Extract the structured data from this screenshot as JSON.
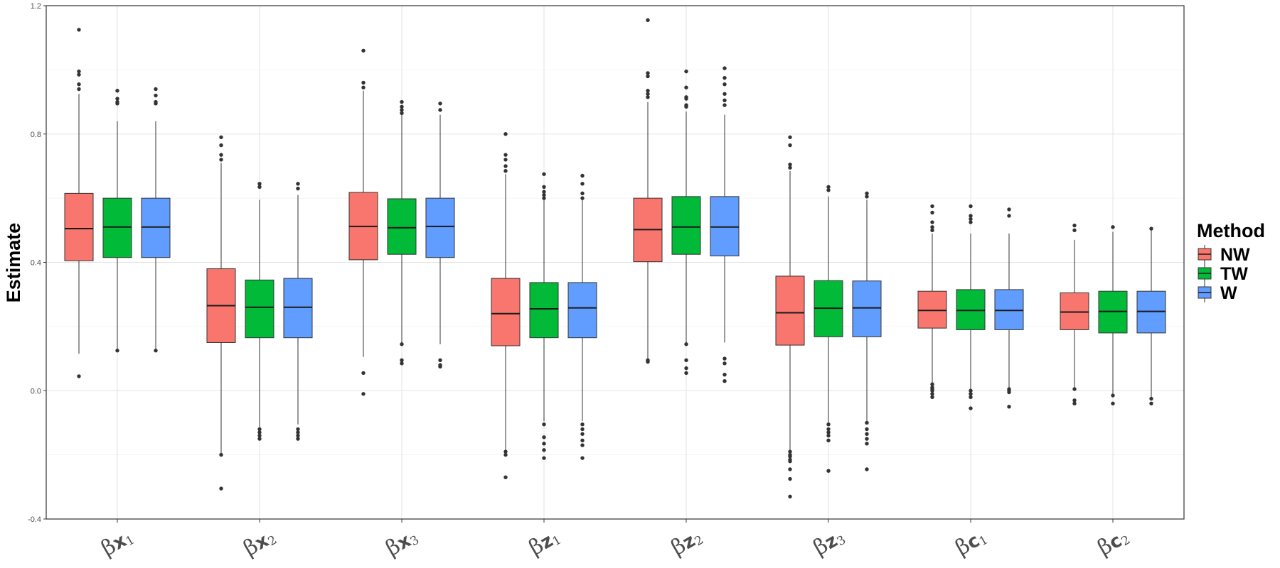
{
  "chart_data": {
    "type": "boxplot",
    "title": "",
    "xlabel": "",
    "ylabel": "Estimate",
    "ylim": [
      -0.4,
      1.2
    ],
    "yticks": [
      1.2,
      0.8,
      0.4,
      0.0,
      -0.4
    ],
    "ytick_labels": [
      "1.2",
      "0.8",
      "0.4",
      "0.0",
      "-0.4"
    ],
    "grid": true,
    "legend": {
      "title": "Method",
      "position": "right",
      "entries": [
        {
          "name": "NW",
          "color": "#F8766D"
        },
        {
          "name": "TW",
          "color": "#00BA38"
        },
        {
          "name": "W",
          "color": "#619CFF"
        }
      ]
    },
    "categories": [
      {
        "base": "β",
        "letter": "x",
        "sub": "1"
      },
      {
        "base": "β",
        "letter": "x",
        "sub": "2"
      },
      {
        "base": "β",
        "letter": "x",
        "sub": "3"
      },
      {
        "base": "β",
        "letter": "z",
        "sub": "1"
      },
      {
        "base": "β",
        "letter": "z",
        "sub": "2"
      },
      {
        "base": "β",
        "letter": "z",
        "sub": "3"
      },
      {
        "base": "β",
        "letter": "c",
        "sub": "1"
      },
      {
        "base": "β",
        "letter": "c",
        "sub": "2"
      }
    ],
    "series": [
      {
        "name": "NW",
        "color": "#F8766D",
        "boxes": [
          {
            "q1": 0.405,
            "median": 0.505,
            "q3": 0.615,
            "lower": 0.115,
            "upper": 0.925,
            "outliers": [
              1.125,
              0.995,
              0.985,
              0.955,
              0.94,
              0.045
            ]
          },
          {
            "q1": 0.15,
            "median": 0.265,
            "q3": 0.38,
            "lower": -0.195,
            "upper": 0.71,
            "outliers": [
              0.79,
              0.765,
              0.735,
              0.72,
              -0.2,
              -0.305
            ]
          },
          {
            "q1": 0.408,
            "median": 0.512,
            "q3": 0.618,
            "lower": 0.105,
            "upper": 0.935,
            "outliers": [
              1.06,
              0.96,
              0.945,
              0.055,
              -0.01
            ]
          },
          {
            "q1": 0.14,
            "median": 0.24,
            "q3": 0.35,
            "lower": -0.185,
            "upper": 0.675,
            "outliers": [
              0.8,
              0.735,
              0.72,
              0.7,
              0.685,
              -0.19,
              -0.2,
              -0.27
            ]
          },
          {
            "q1": 0.402,
            "median": 0.502,
            "q3": 0.6,
            "lower": 0.1,
            "upper": 0.9,
            "outliers": [
              1.155,
              0.99,
              0.98,
              0.935,
              0.925,
              0.915,
              0.095,
              0.09
            ]
          },
          {
            "q1": 0.142,
            "median": 0.243,
            "q3": 0.357,
            "lower": -0.185,
            "upper": 0.685,
            "outliers": [
              0.79,
              0.765,
              0.705,
              0.695,
              -0.19,
              -0.2,
              -0.205,
              -0.215,
              -0.22,
              -0.245,
              -0.275,
              -0.33
            ]
          },
          {
            "q1": 0.195,
            "median": 0.25,
            "q3": 0.31,
            "lower": 0.025,
            "upper": 0.49,
            "outliers": [
              0.575,
              0.555,
              0.525,
              0.51,
              0.5,
              0.02,
              0.01,
              0.005,
              0.0,
              -0.01,
              -0.02
            ]
          },
          {
            "q1": 0.19,
            "median": 0.245,
            "q3": 0.305,
            "lower": 0.01,
            "upper": 0.47,
            "outliers": [
              0.515,
              0.5,
              0.005,
              -0.03,
              -0.04
            ]
          }
        ]
      },
      {
        "name": "TW",
        "color": "#00BA38",
        "boxes": [
          {
            "q1": 0.415,
            "median": 0.51,
            "q3": 0.6,
            "lower": 0.13,
            "upper": 0.84,
            "outliers": [
              0.935,
              0.91,
              0.9,
              0.895,
              0.125
            ]
          },
          {
            "q1": 0.165,
            "median": 0.26,
            "q3": 0.345,
            "lower": -0.115,
            "upper": 0.595,
            "outliers": [
              0.645,
              0.635,
              -0.12,
              -0.13,
              -0.14,
              -0.15
            ]
          },
          {
            "q1": 0.425,
            "median": 0.508,
            "q3": 0.598,
            "lower": 0.145,
            "upper": 0.86,
            "outliers": [
              0.9,
              0.885,
              0.875,
              0.865,
              0.145,
              0.095,
              0.085
            ]
          },
          {
            "q1": 0.165,
            "median": 0.255,
            "q3": 0.337,
            "lower": -0.095,
            "upper": 0.595,
            "outliers": [
              0.675,
              0.635,
              0.62,
              0.61,
              0.6,
              -0.105,
              -0.145,
              -0.165,
              -0.185,
              -0.21
            ]
          },
          {
            "q1": 0.425,
            "median": 0.51,
            "q3": 0.605,
            "lower": 0.145,
            "upper": 0.87,
            "outliers": [
              0.995,
              0.945,
              0.915,
              0.91,
              0.89,
              0.885,
              0.145,
              0.095,
              0.07,
              0.055
            ]
          },
          {
            "q1": 0.168,
            "median": 0.257,
            "q3": 0.343,
            "lower": -0.1,
            "upper": 0.605,
            "outliers": [
              0.635,
              0.625,
              -0.105,
              -0.12,
              -0.13,
              -0.14,
              -0.155,
              -0.25
            ]
          },
          {
            "q1": 0.19,
            "median": 0.25,
            "q3": 0.315,
            "lower": 0.005,
            "upper": 0.49,
            "outliers": [
              0.575,
              0.545,
              0.535,
              0.525,
              0.0,
              -0.01,
              -0.02,
              -0.055
            ]
          },
          {
            "q1": 0.18,
            "median": 0.247,
            "q3": 0.31,
            "lower": -0.01,
            "upper": 0.495,
            "outliers": [
              0.51,
              -0.015,
              -0.04
            ]
          }
        ]
      },
      {
        "name": "W",
        "color": "#619CFF",
        "boxes": [
          {
            "q1": 0.415,
            "median": 0.51,
            "q3": 0.6,
            "lower": 0.13,
            "upper": 0.84,
            "outliers": [
              0.94,
              0.92,
              0.9,
              0.895,
              0.125
            ]
          },
          {
            "q1": 0.165,
            "median": 0.26,
            "q3": 0.35,
            "lower": -0.105,
            "upper": 0.61,
            "outliers": [
              0.645,
              0.63,
              -0.12,
              -0.13,
              -0.14,
              -0.15
            ]
          },
          {
            "q1": 0.415,
            "median": 0.512,
            "q3": 0.6,
            "lower": 0.145,
            "upper": 0.86,
            "outliers": [
              0.895,
              0.875,
              0.095,
              0.08,
              0.075
            ]
          },
          {
            "q1": 0.165,
            "median": 0.258,
            "q3": 0.337,
            "lower": -0.095,
            "upper": 0.595,
            "outliers": [
              0.67,
              0.645,
              0.615,
              0.6,
              -0.105,
              -0.12,
              -0.135,
              -0.155,
              -0.17,
              -0.21
            ]
          },
          {
            "q1": 0.42,
            "median": 0.51,
            "q3": 0.605,
            "lower": 0.15,
            "upper": 0.86,
            "outliers": [
              1.005,
              0.975,
              0.955,
              0.925,
              0.905,
              0.89,
              0.1,
              0.085,
              0.05,
              0.03
            ]
          },
          {
            "q1": 0.168,
            "median": 0.258,
            "q3": 0.342,
            "lower": -0.095,
            "upper": 0.595,
            "outliers": [
              0.615,
              0.605,
              -0.1,
              -0.12,
              -0.135,
              -0.15,
              -0.165,
              -0.245
            ]
          },
          {
            "q1": 0.19,
            "median": 0.25,
            "q3": 0.315,
            "lower": 0.01,
            "upper": 0.49,
            "outliers": [
              0.565,
              0.545,
              0.005,
              0.0,
              -0.005,
              -0.05
            ]
          },
          {
            "q1": 0.18,
            "median": 0.247,
            "q3": 0.31,
            "lower": -0.02,
            "upper": 0.5,
            "outliers": [
              0.505,
              -0.025,
              -0.04
            ]
          }
        ]
      }
    ]
  }
}
